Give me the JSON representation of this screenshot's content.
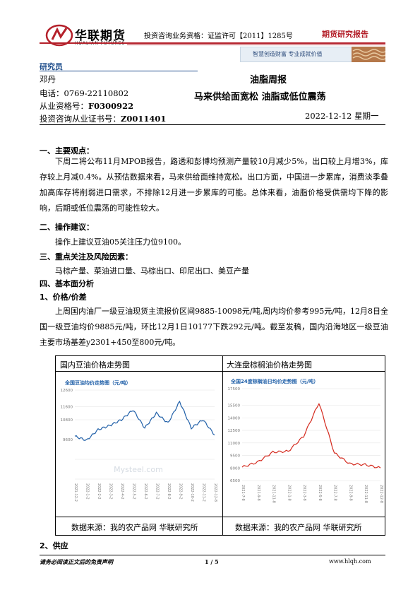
{
  "header": {
    "logo_cn": "华联期货",
    "logo_en": "HUALIAN FUTURES",
    "license": "投资咨询业务资格：证监许可【2011】1285号",
    "report_type": "期货研究报告",
    "slogan": "智慧创造财富  专业成就价值",
    "brand_color": "#b4202a"
  },
  "analyst": {
    "heading": "研究员",
    "name": "邓丹",
    "phone_label": "电话：",
    "phone": "0769-22110802",
    "qual_label": "从业资格号：",
    "qual": "F0300922",
    "cert_label": "投资咨询从业证书号：",
    "cert": "Z0011401"
  },
  "title": {
    "line1": "油脂周报",
    "line2": "马来供给面宽松  油脂或低位震荡",
    "date": "2022-12-12 星期一"
  },
  "sections": {
    "s1": "一、主要观点：",
    "s1_text": "下周二将公布11月MPOB报告，路透和彭博均预测产量较10月减少5%，出口较上月增3%，库存较上月减0.4%。从预估数据来看，马来供给面维持宽松。出口方面，中国进一步累库，消费淡季叠加高库存将削弱进口需求，不排除12月进一步累库的可能。总体来看，油脂价格受供需均下降的影响，后期或低位震荡的可能性较大。",
    "s2": "二、操作建议：",
    "s2_text": "操作上建议豆油05关注压力位9100。",
    "s3": "三、重点关注及风险因素：",
    "s3_text": "马棕产量、菜油进口量、马棕出口、印尼出口、美豆产量",
    "s4": "四、基本面分析",
    "s4_1": "1、价格/价差",
    "s4_1_text": "上周国内油厂一级豆油现货主流报价区间9885-10098元/吨,周内均价参考995元/吨，12月8日全国一级豆油均价9885元/吨，环比12月1日10177下跌292元/吨。截至发稿，国内沿海地区一级豆油主要市场基差y2301+450至800元/吨。",
    "s4_2": "2、供应"
  },
  "charts": {
    "left_caption": "国内豆油价格走势图",
    "right_caption": "大连盘棕榈油价格走势图",
    "left_source": "数据来源：我的农产品网  华联研究所",
    "right_source": "数据来源：我的农产品网  华联研究所",
    "left_inner_title": "全国豆油均价走势图（元/吨）",
    "right_inner_title": "全国24度棕榈油日均价走势图（元/吨）",
    "left_watermark": "Mysteel.com",
    "line_color": "#1f5fa8",
    "right_line_color": "#d42a1e"
  },
  "chart_data": [
    {
      "type": "line",
      "title": "全国豆油均价走势图（元/吨）",
      "ylim": [
        7200,
        12600
      ],
      "yticks": [
        7200,
        8400,
        9600,
        10800,
        11600,
        12600
      ],
      "ytick_labels": [
        "",
        "",
        "9600",
        "10800",
        "11600",
        "12600"
      ],
      "x": [
        "2021-12-2",
        "2022-1-2",
        "2022-2-2",
        "2022-3-2",
        "2022-4-2",
        "2022-5-2",
        "2022-6-2",
        "2022-7-2",
        "2022-8-2",
        "2022-9-2",
        "2022-10-2",
        "2022-11-2",
        "2022-12-8"
      ],
      "series": [
        {
          "values": [
            9800,
            9550,
            10200,
            10450,
            10800,
            11400,
            10300,
            11200,
            10600,
            11900,
            10300,
            10800,
            9885
          ]
        }
      ]
    },
    {
      "type": "line",
      "title": "全国24度棕榈油日均价走势图（元/吨）",
      "ylim": [
        6500,
        17500
      ],
      "yticks": [
        6500,
        8000,
        9500,
        11000,
        12500,
        14000,
        15500,
        17500
      ],
      "ytick_labels": [
        "6500",
        "8000",
        "9500",
        "11000",
        "12500",
        "14000",
        "15500",
        "17500"
      ],
      "x": [
        "2021-7-8",
        "2021-9-8",
        "2021-11-8",
        "2022-1-8",
        "2022-3-8",
        "2022-5-8",
        "2022-7-8",
        "2022-9-8",
        "2022-11-8",
        "2022-12-8"
      ],
      "series": [
        {
          "values": [
            8100,
            8700,
            9900,
            10000,
            11800,
            15800,
            9800,
            8500,
            8400,
            8000
          ]
        }
      ]
    }
  ],
  "footer": {
    "disclaimer": "请务必阅读正文后的免责声明",
    "page": "1 / 5",
    "site": "www.hlqh.com"
  }
}
